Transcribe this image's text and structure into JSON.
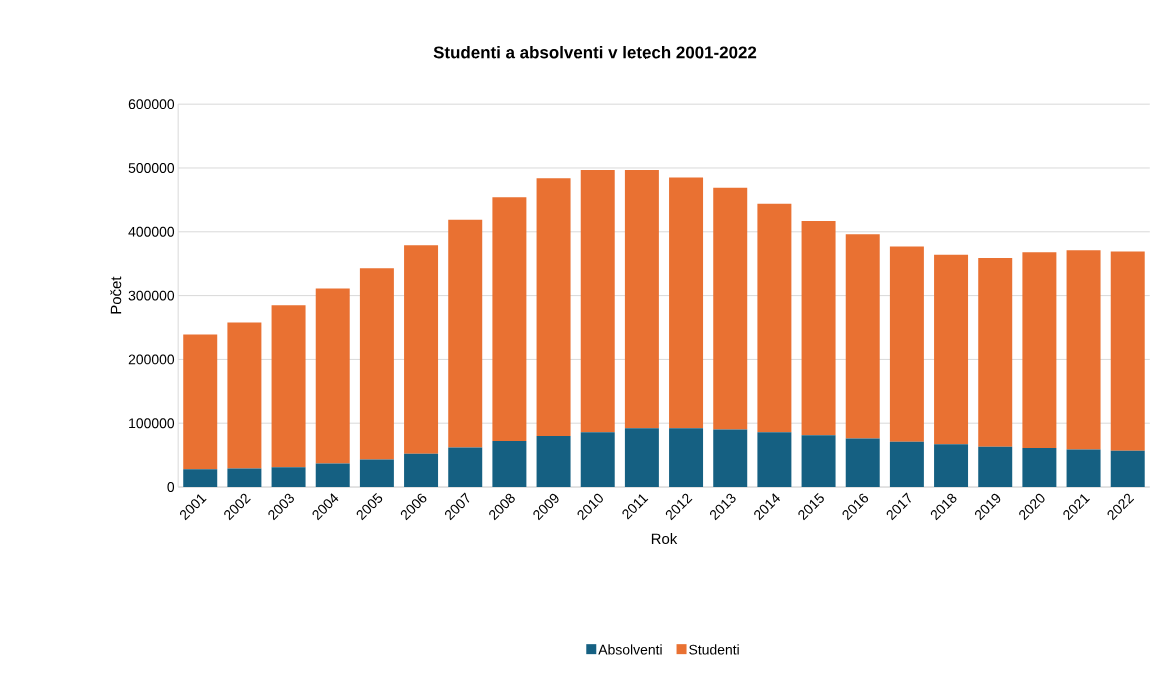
{
  "chart_data": {
    "type": "bar",
    "stacked": true,
    "title": "Studenti a absolventi v letech 2001-2022",
    "xlabel": "Rok",
    "ylabel": "Počet",
    "categories": [
      "2001",
      "2002",
      "2003",
      "2004",
      "2005",
      "2006",
      "2007",
      "2008",
      "2009",
      "2010",
      "2011",
      "2012",
      "2013",
      "2014",
      "2015",
      "2016",
      "2017",
      "2018",
      "2019",
      "2020",
      "2021",
      "2022"
    ],
    "series": [
      {
        "name": "Absolventi",
        "color": "#156082",
        "values": [
          28000,
          29000,
          31000,
          37000,
          43000,
          52000,
          62000,
          72000,
          80000,
          86000,
          92000,
          92000,
          90000,
          86000,
          81000,
          76000,
          71000,
          67000,
          63000,
          61000,
          59000,
          57000
        ]
      },
      {
        "name": "Studenti",
        "color": "#e97132",
        "values": [
          211000,
          229000,
          254000,
          274000,
          300000,
          327000,
          357000,
          382000,
          404000,
          411000,
          405000,
          393000,
          379000,
          358000,
          336000,
          320000,
          306000,
          297000,
          296000,
          307000,
          312000,
          312000
        ]
      }
    ],
    "ylim": [
      0,
      600000
    ],
    "yticks": [
      0,
      100000,
      200000,
      300000,
      400000,
      500000,
      600000
    ],
    "grid": "y",
    "legend": "bottom"
  }
}
